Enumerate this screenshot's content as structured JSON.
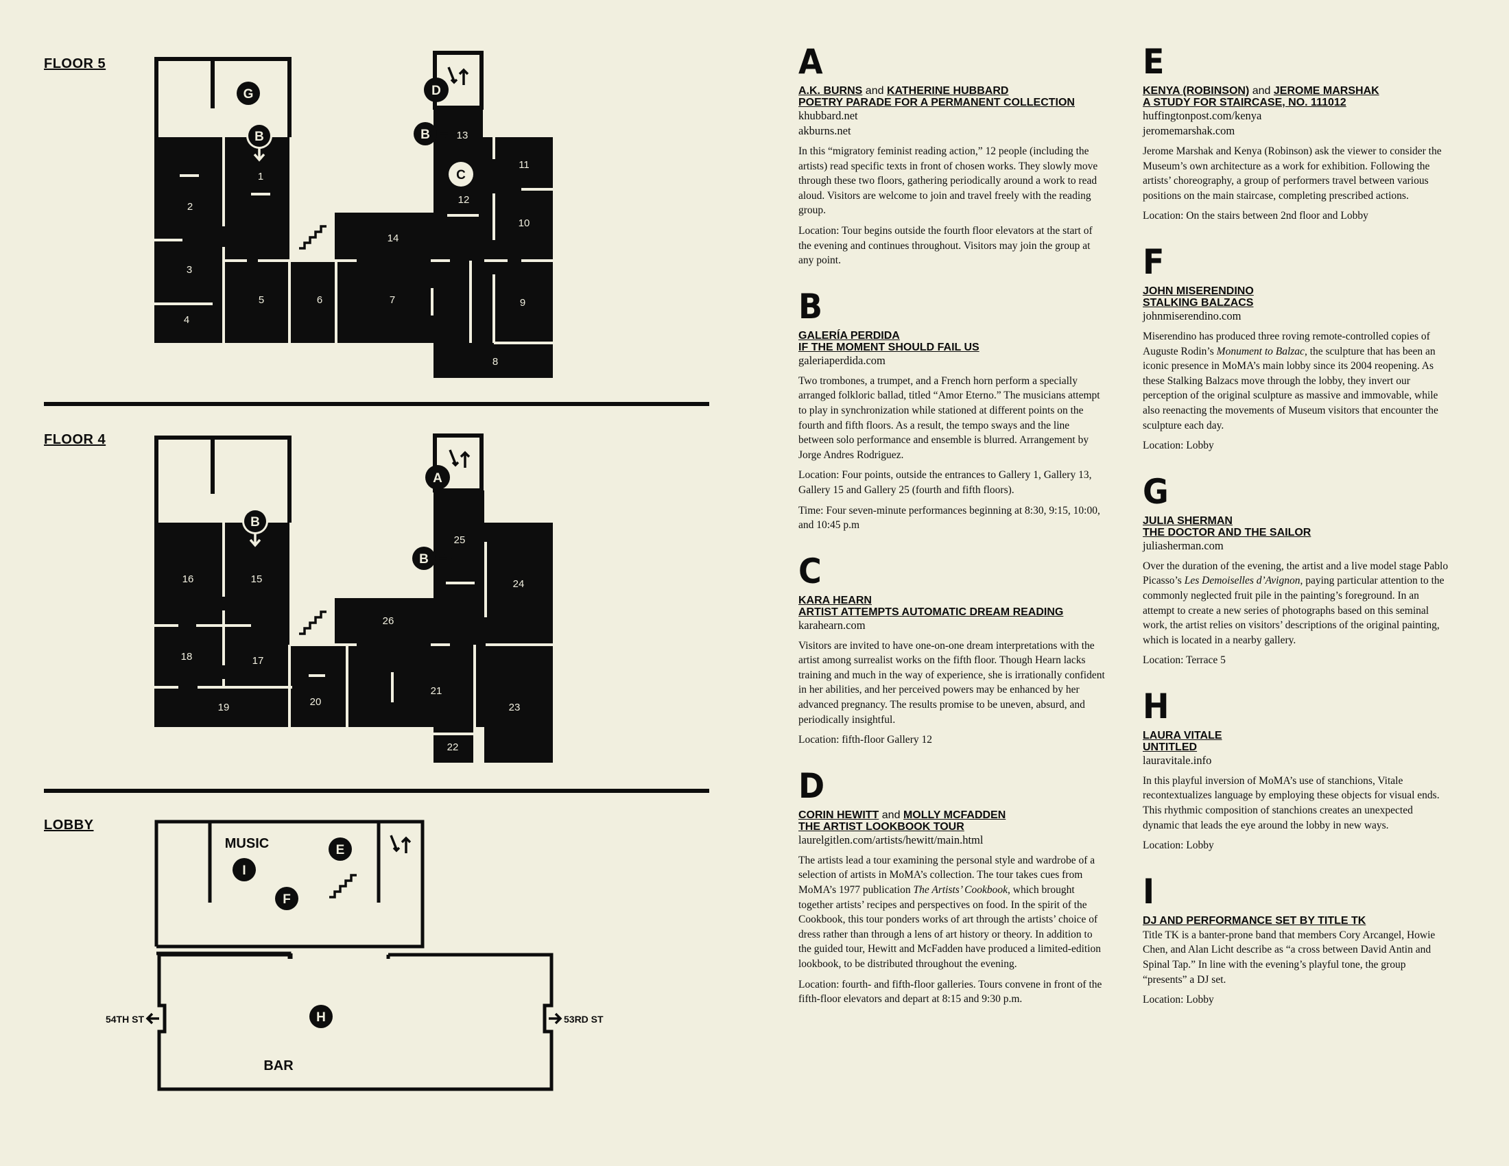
{
  "floors": {
    "floor5": "FLOOR 5",
    "floor4": "FLOOR 4",
    "lobby": "LOBBY"
  },
  "map_labels": {
    "music": "MUSIC",
    "bar": "BAR",
    "street_left": "54TH ST",
    "street_right": "53RD ST"
  },
  "galleries_floor5": [
    "1",
    "2",
    "3",
    "4",
    "5",
    "6",
    "7",
    "8",
    "9",
    "10",
    "11",
    "12",
    "13",
    "14"
  ],
  "galleries_floor4": [
    "15",
    "16",
    "17",
    "18",
    "19",
    "20",
    "21",
    "22",
    "23",
    "24",
    "25",
    "26"
  ],
  "markers": {
    "floor5": [
      "G",
      "B",
      "D",
      "B",
      "C"
    ],
    "floor4": [
      "B",
      "A",
      "B"
    ],
    "lobby": [
      "I",
      "E",
      "F",
      "H"
    ]
  },
  "entries": {
    "A": {
      "letter": "A",
      "name1": "A.K. BURNS",
      "and": "and",
      "name2": "KATHERINE HUBBARD",
      "work": "POETRY PARADE FOR A PERMANENT COLLECTION",
      "url1": "khubbard.net",
      "url2": "akburns.net",
      "body": "In this “migratory feminist reading action,” 12 people (including the artists) read specific texts in front of chosen works. They slowly move through these two floors, gathering periodically around a work to read aloud. Visitors are welcome to join and travel freely with the reading group.",
      "location": "Location: Tour begins outside the fourth floor elevators at the start of the evening and continues throughout. Visitors may join the group at any point."
    },
    "B": {
      "letter": "B",
      "name1": "GALERÍA PERDIDA",
      "work": "IF THE MOMENT SHOULD FAIL US",
      "url1": "galeriaperdida.com",
      "body": "Two trombones, a trumpet, and a French horn perform a specially arranged folkloric ballad, titled “Amor Eterno.” The musicians attempt to play in synchronization while stationed at different points on the fourth and fifth floors. As a result, the tempo sways and the line between solo performance and ensemble is blurred. Arrangement by Jorge Andres Rodriguez.",
      "location": "Location: Four points, outside the entrances to Gallery 1, Gallery 13, Gallery 15 and Gallery 25 (fourth and fifth floors).",
      "time": "Time: Four seven-minute performances beginning at 8:30, 9:15, 10:00, and 10:45 p.m"
    },
    "C": {
      "letter": "C",
      "name1": "KARA HEARN",
      "work": "ARTIST ATTEMPTS AUTOMATIC DREAM READING",
      "url1": "karahearn.com",
      "body": "Visitors are invited to have one-on-one dream interpretations with the artist among surrealist works on the fifth floor. Though Hearn lacks training and much in the way of experience, she is irrationally confident in her abilities, and her perceived powers may be enhanced by her advanced pregnancy. The results promise to be uneven, absurd, and periodically insightful.",
      "location": "Location: fifth-floor Gallery 12"
    },
    "D": {
      "letter": "D",
      "name1": "CORIN HEWITT",
      "and": "and",
      "name2": "MOLLY MCFADDEN",
      "work": "THE ARTIST LOOKBOOK TOUR",
      "url1": "laurelgitlen.com/artists/hewitt/main.html",
      "body_a": "The artists lead a tour examining the personal style and wardrobe of a selection of artists in MoMA’s collection. The tour takes cues from MoMA’s 1977 publication ",
      "body_italic": "The Artists’ Cookbook",
      "body_b": ", which brought together artists’ recipes and perspectives on food. In the spirit of the Cookbook, this tour ponders works of art through the artists’ choice of dress rather than through a lens of art history or theory. In addition to the guided tour, Hewitt and McFadden have produced a limited-edition lookbook, to be distributed throughout the evening.",
      "location": "Location: fourth- and fifth-floor galleries. Tours convene in front of the fifth-floor elevators and depart at 8:15 and 9:30 p.m."
    },
    "E": {
      "letter": "E",
      "name1": "KENYA (ROBINSON)",
      "and": "and",
      "name2": "JEROME MARSHAK",
      "work": "A STUDY FOR STAIRCASE, NO. 111012",
      "url1": "huffingtonpost.com/kenya",
      "url2": "jeromemarshak.com",
      "body": "Jerome Marshak and Kenya (Robinson) ask the viewer to consider the Museum’s own architecture as a work for exhibition. Following the artists’ choreography, a group of performers travel between various positions on the main staircase, completing prescribed actions.",
      "location": "Location: On the stairs between 2nd floor and Lobby"
    },
    "F": {
      "letter": "F",
      "name1": "JOHN MISERENDINO",
      "work": "STALKING BALZACS",
      "url1": "johnmiserendino.com",
      "body_a": "Miserendino has produced three roving remote-controlled copies of Auguste Rodin’s ",
      "body_italic": "Monument to Balzac",
      "body_b": ", the sculpture that has been an iconic presence in MoMA’s main lobby since its 2004 reopening. As these Stalking Balzacs move through the lobby, they invert our perception of the original sculpture as massive and immovable, while also reenacting the movements of Museum visitors that encounter the sculpture each day.",
      "location": "Location: Lobby"
    },
    "G": {
      "letter": "G",
      "name1": "JULIA SHERMAN",
      "work": "THE DOCTOR AND THE SAILOR",
      "url1": "juliasherman.com",
      "body_a": "Over the duration of the evening, the artist and a live model stage Pablo Picasso’s ",
      "body_italic": "Les Demoiselles d’Avignon",
      "body_b": ", paying particular attention to the commonly neglected fruit pile in the painting’s foreground. In an attempt to create a new series of photographs based on this seminal work, the artist relies on visitors’ descriptions of the original painting, which is located in a nearby gallery.",
      "location": "Location: Terrace 5"
    },
    "H": {
      "letter": "H",
      "name1": "LAURA VITALE",
      "work": "UNTITLED",
      "url1": "lauravitale.info",
      "body": "In this playful inversion of MoMA’s use of stanchions, Vitale recontextualizes language by employing these objects for visual ends. This rhythmic composition of stanchions creates an unexpected dynamic that leads the eye around the lobby in new ways.",
      "location": "Location: Lobby"
    },
    "I": {
      "letter": "I",
      "work": "DJ AND PERFORMANCE SET BY TITLE TK",
      "body": "Title TK is a banter-prone band that members Cory Arcangel, Howie Chen, and Alan Licht describe as “a cross between David Antin and Spinal Tap.” In line with the evening’s playful tone, the group “presents” a DJ set.",
      "location": "Location: Lobby"
    }
  }
}
